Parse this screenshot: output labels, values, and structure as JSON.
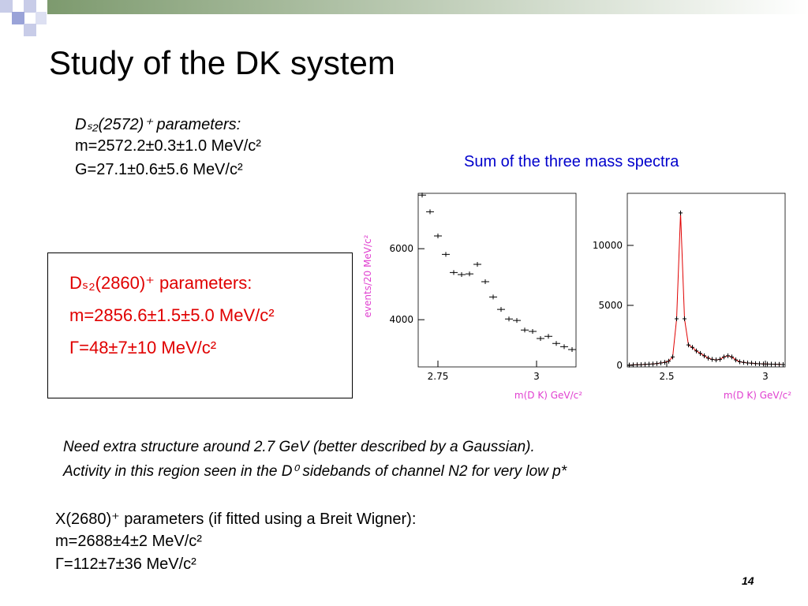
{
  "title": "Study of the DK system",
  "ds2572": [
    "Dₛ₂(2572)⁺ parameters:",
    "m=2572.2±0.3±1.0 MeV/c²",
    "G=27.1±0.6±5.6 MeV/c²"
  ],
  "caption": "Sum of the three mass spectra",
  "ds2860": [
    "Dₛ₂(2860)⁺ parameters:",
    "m=2856.6±1.5±5.0 MeV/c²",
    "Γ=48±7±10 MeV/c²"
  ],
  "comment": [
    "Need extra structure around 2.7 GeV (better described by a Gaussian).",
    "Activity in this region seen in the D⁰ sidebands of channel N2 for very low p*"
  ],
  "x2680": [
    "X(2680)⁺ parameters (if fitted using a Breit Wigner):",
    "m=2688±4±2 MeV/c²",
    "Γ=112±7±36 MeV/c²"
  ],
  "page_number": "14",
  "chart_data": [
    {
      "type": "scatter",
      "x_label": "m(D K) GeV/c²",
      "y_label": "events/20 MeV/c²",
      "color": "#000000",
      "label_color": "#e040d0",
      "x": [
        2.71,
        2.73,
        2.75,
        2.77,
        2.79,
        2.81,
        2.83,
        2.85,
        2.87,
        2.89,
        2.91,
        2.93,
        2.95,
        2.97,
        2.99,
        3.01,
        3.03,
        3.05,
        3.07,
        3.09
      ],
      "values": [
        7510,
        7040,
        6360,
        5840,
        5330,
        5270,
        5290,
        5560,
        5070,
        4640,
        4290,
        4020,
        3980,
        3710,
        3670,
        3470,
        3530,
        3330,
        3240,
        3160
      ],
      "xlim": [
        2.7,
        3.1
      ],
      "ylim": [
        2670,
        7560
      ],
      "xticks": [
        2.75,
        3
      ],
      "yticks": [
        4000,
        6000
      ]
    },
    {
      "type": "scatter",
      "x_label": "m(D K) GeV/c²",
      "color": "#000000",
      "label_color": "#e040d0",
      "fit_color": "#e00000",
      "x": [
        2.31,
        2.33,
        2.35,
        2.37,
        2.39,
        2.41,
        2.43,
        2.45,
        2.47,
        2.49,
        2.51,
        2.53,
        2.55,
        2.57,
        2.59,
        2.61,
        2.63,
        2.65,
        2.67,
        2.69,
        2.71,
        2.73,
        2.75,
        2.77,
        2.79,
        2.81,
        2.83,
        2.85,
        2.87,
        2.89,
        2.91,
        2.93,
        2.95,
        2.97,
        2.99,
        3.01,
        3.03,
        3.05,
        3.07,
        3.09
      ],
      "values": [
        30,
        40,
        50,
        60,
        80,
        100,
        120,
        150,
        200,
        250,
        350,
        700,
        3880,
        12700,
        3880,
        1700,
        1500,
        1200,
        1000,
        800,
        600,
        500,
        450,
        500,
        700,
        800,
        700,
        450,
        300,
        250,
        200,
        180,
        150,
        130,
        120,
        110,
        100,
        90,
        80,
        70
      ],
      "xlim": [
        2.3,
        3.1
      ],
      "ylim": [
        -130,
        14340
      ],
      "xticks": [
        2.5,
        3
      ],
      "yticks": [
        0,
        5000,
        10000
      ]
    }
  ]
}
